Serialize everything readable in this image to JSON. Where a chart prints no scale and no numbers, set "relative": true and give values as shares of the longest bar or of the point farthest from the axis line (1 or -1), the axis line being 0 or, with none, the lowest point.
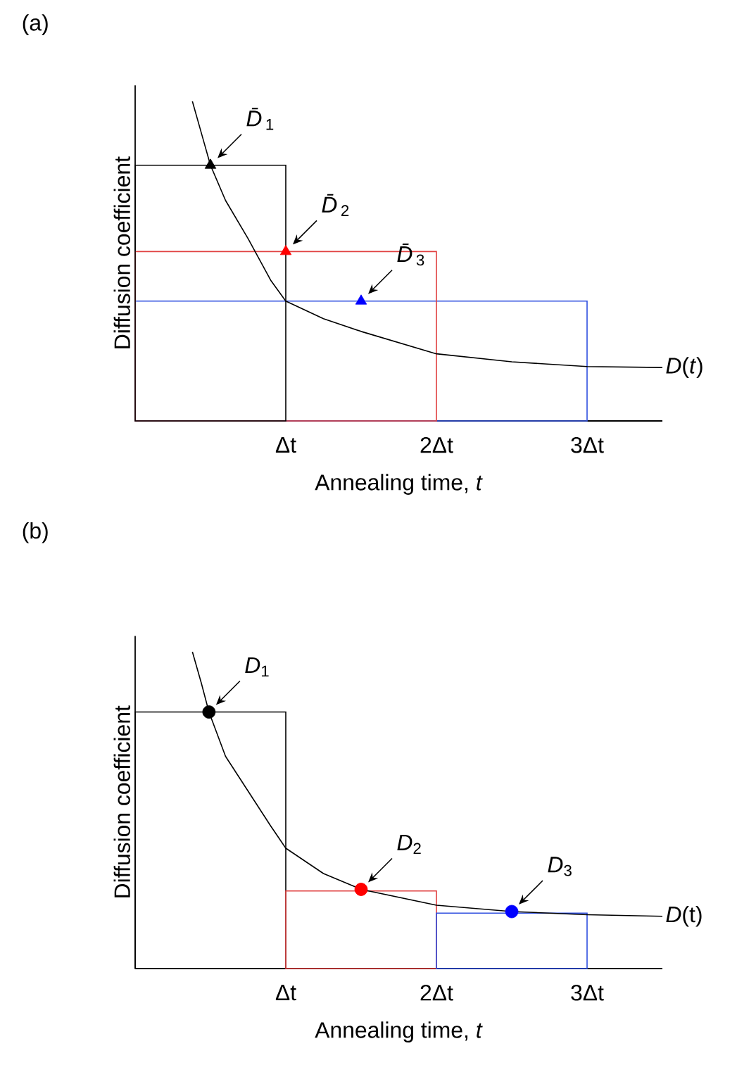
{
  "chart_data": [
    {
      "type": "line",
      "title": "(a)",
      "xlabel": "Annealing time, *t*",
      "ylabel": "Diffusion coefficient",
      "relative": true,
      "xlim": [
        0,
        3.5
      ],
      "xticks": [
        {
          "value": 1,
          "label": "Δt"
        },
        {
          "value": 2,
          "label": "2Δt"
        },
        {
          "value": 3,
          "label": "3Δt"
        }
      ],
      "series": [
        {
          "type": "histogram",
          "color": "#3050e0",
          "bins": [
            0,
            3
          ],
          "values": [
            0.375
          ]
        },
        {
          "type": "histogram",
          "color": "#e04040",
          "bins": [
            0,
            2
          ],
          "values": [
            0.53
          ]
        },
        {
          "type": "histogram",
          "color": "#000000",
          "bins": [
            0,
            1
          ],
          "values": [
            0.8
          ]
        },
        {
          "type": "line",
          "name": "*D*(*t*)",
          "color": "#000000",
          "marker": "none",
          "x": [
            0.38,
            0.44,
            0.5,
            0.6,
            0.75,
            0.9,
            1,
            1.25,
            1.5,
            2,
            2.5,
            3,
            3.5
          ],
          "values": [
            1,
            0.9,
            0.8,
            0.69,
            0.57,
            0.44,
            0.375,
            0.32,
            0.28,
            0.21,
            0.185,
            0.17,
            0.167
          ]
        },
        {
          "type": "scatter",
          "color": "#000000",
          "marker": "triangle",
          "x": [
            0.5
          ],
          "values": [
            0.8
          ]
        },
        {
          "type": "scatter",
          "color": "#ff0000",
          "marker": "triangle",
          "x": [
            1
          ],
          "values": [
            0.53
          ]
        },
        {
          "type": "scatter",
          "color": "#0000ff",
          "marker": "triangle",
          "x": [
            1.5
          ],
          "values": [
            0.375
          ]
        }
      ],
      "annotations": [
        {
          "text": "*D̄*$_{1}$",
          "x": 0.5,
          "y": 0.8
        },
        {
          "text": "*D̄*$_{2}$",
          "x": 1,
          "y": 0.53
        },
        {
          "text": "*D̄*$_{3}$",
          "x": 1.5,
          "y": 0.375
        }
      ]
    },
    {
      "type": "line",
      "title": "(b)",
      "xlabel": "Annealing time, *t*",
      "ylabel": "Diffusion coefficient",
      "relative": true,
      "xlim": [
        0,
        3.5
      ],
      "xticks": [
        {
          "value": 1,
          "label": "Δt"
        },
        {
          "value": 2,
          "label": "2Δt"
        },
        {
          "value": 3,
          "label": "3Δt"
        }
      ],
      "series": [
        {
          "type": "histogram",
          "colors": [
            "#000000",
            "#e04040",
            "#3050e0"
          ],
          "bins": [
            0,
            1,
            2,
            3
          ],
          "values": [
            0.81,
            0.245,
            0.175
          ]
        },
        {
          "type": "line",
          "name": "*D*(t)",
          "color": "#000000",
          "marker": "none",
          "x": [
            0.38,
            0.44,
            0.49,
            0.6,
            0.75,
            0.9,
            1,
            1.25,
            1.5,
            2,
            2.5,
            3,
            3.5
          ],
          "values": [
            1,
            0.9,
            0.81,
            0.67,
            0.56,
            0.45,
            0.38,
            0.3,
            0.25,
            0.2,
            0.18,
            0.17,
            0.165
          ]
        },
        {
          "type": "scatter",
          "color": "#000000",
          "marker": "circle",
          "x": [
            0.49
          ],
          "values": [
            0.81
          ]
        },
        {
          "type": "scatter",
          "color": "#ff0000",
          "marker": "circle",
          "x": [
            1.5
          ],
          "values": [
            0.25
          ]
        },
        {
          "type": "scatter",
          "color": "#0000ff",
          "marker": "circle",
          "x": [
            2.5
          ],
          "values": [
            0.18
          ]
        }
      ],
      "annotations": [
        {
          "text": "*D*$_{1}$",
          "x": 0.49,
          "y": 0.81
        },
        {
          "text": "*D*$_{2}$",
          "x": 1.5,
          "y": 0.25
        },
        {
          "text": "*D*$_{3}$",
          "x": 2.5,
          "y": 0.18
        }
      ]
    }
  ]
}
